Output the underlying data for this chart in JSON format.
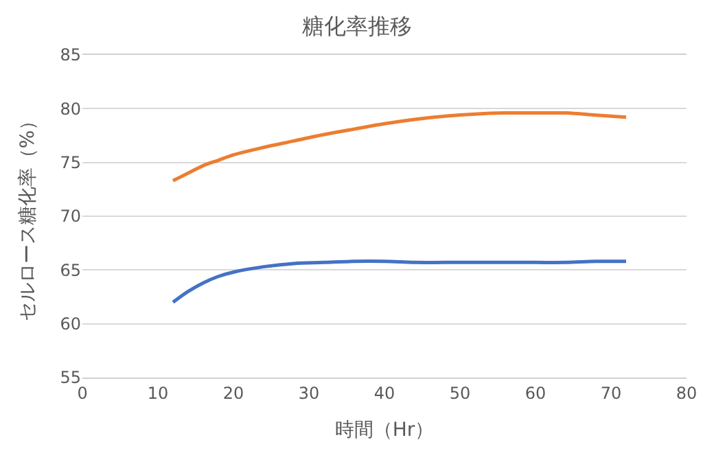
{
  "chart_data": {
    "type": "line",
    "title": "糖化率推移",
    "xlabel": "時間（Hr）",
    "ylabel": "セルロース糖化率（%）",
    "x": [
      12,
      14,
      16,
      18,
      20,
      24,
      28,
      32,
      36,
      40,
      44,
      48,
      52,
      56,
      60,
      64,
      68,
      72
    ],
    "series": [
      {
        "color": "#ed7d31",
        "values": [
          73.3,
          74.0,
          74.7,
          75.2,
          75.7,
          76.4,
          77.0,
          77.6,
          78.1,
          78.6,
          79.0,
          79.3,
          79.5,
          79.6,
          79.6,
          79.6,
          79.4,
          79.2
        ]
      },
      {
        "color": "#4472c4",
        "values": [
          62.0,
          63.0,
          63.8,
          64.4,
          64.8,
          65.3,
          65.6,
          65.7,
          65.8,
          65.8,
          65.7,
          65.7,
          65.7,
          65.7,
          65.7,
          65.7,
          65.8,
          65.8
        ]
      }
    ],
    "xlim": [
      0,
      80
    ],
    "xticks": [
      0,
      10,
      20,
      30,
      40,
      50,
      60,
      70,
      80
    ],
    "ylim": [
      55,
      85
    ],
    "yticks": [
      55,
      60,
      65,
      70,
      75,
      80,
      85
    ],
    "grid": "y",
    "marker": "none",
    "line_style": "solid"
  }
}
